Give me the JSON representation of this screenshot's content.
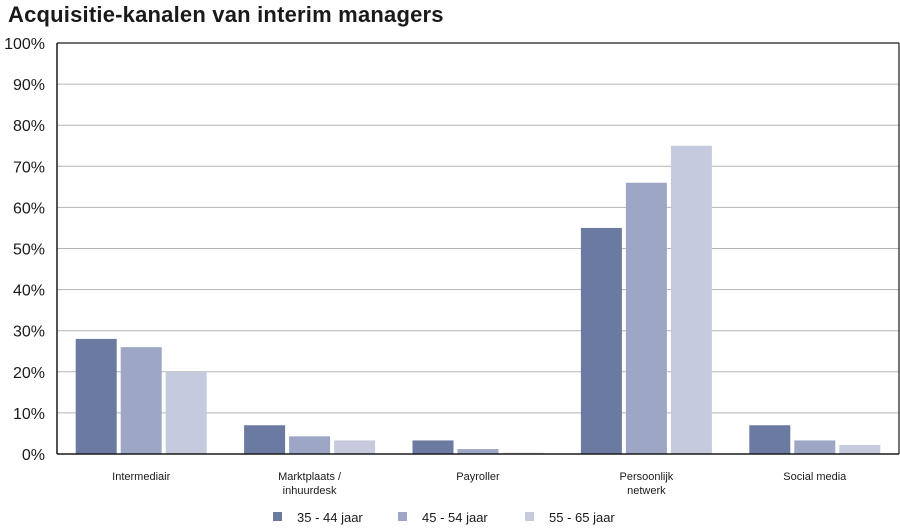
{
  "chart_data": {
    "type": "bar",
    "title": "Acquisitie-kanalen van interim managers",
    "categories": [
      [
        "Intermediair"
      ],
      [
        "Marktplaats /",
        "inhuurdesk"
      ],
      [
        "Payroller"
      ],
      [
        "Persoonlijk",
        "netwerk"
      ],
      [
        "Social media"
      ]
    ],
    "series": [
      {
        "name": "35 - 44 jaar",
        "color": "#6b7aa1",
        "values": [
          28,
          7,
          3.3,
          55,
          7
        ]
      },
      {
        "name": "45 - 54 jaar",
        "color": "#9da6c4",
        "values": [
          26,
          4.3,
          1.2,
          66,
          3.3
        ]
      },
      {
        "name": "55 - 65 jaar",
        "color": "#c5cade",
        "values": [
          20,
          3.3,
          0.3,
          75,
          2.2
        ]
      }
    ],
    "ylim": [
      0,
      100
    ],
    "yticks": [
      "0%",
      "10%",
      "20%",
      "30%",
      "40%",
      "50%",
      "60%",
      "70%",
      "80%",
      "90%",
      "100%"
    ],
    "grid": true,
    "legend": "bottom"
  }
}
